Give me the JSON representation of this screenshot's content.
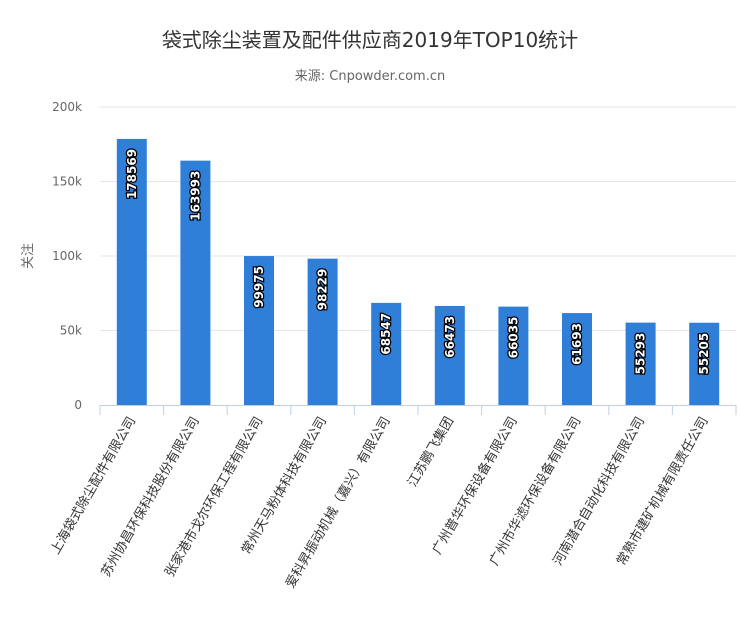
{
  "chart_data": {
    "type": "bar",
    "title": "袋式除尘装置及配件供应商2019年TOP10统计",
    "subtitle": "来源: Cnpowder.com.cn",
    "ylabel": "关注",
    "xlabel": "",
    "ylim": [
      0,
      200000
    ],
    "yticks": [
      {
        "value": 0,
        "label": "0"
      },
      {
        "value": 50000,
        "label": "50k"
      },
      {
        "value": 100000,
        "label": "100k"
      },
      {
        "value": 150000,
        "label": "150k"
      },
      {
        "value": 200000,
        "label": "200k"
      }
    ],
    "grid": true,
    "bar_color": "#2f7ed8",
    "categories": [
      "上海袋式除尘配件有限公司",
      "苏州协昌环保科技股份有限公司",
      "张家港市戈尔环保工程有限公司",
      "常州天马粉体科技有限公司",
      "爱科昇振动机械（嘉兴）有限公司",
      "江苏鹏飞集团",
      "广州普华环保设备有限公司",
      "广州市华滤环保设备有限公司",
      "河南潜合自动化科技有限公司",
      "常熟市建矿机械有限责任公司"
    ],
    "values": [
      178569,
      163993,
      99975,
      98229,
      68547,
      66473,
      66035,
      61693,
      55293,
      55205
    ]
  }
}
